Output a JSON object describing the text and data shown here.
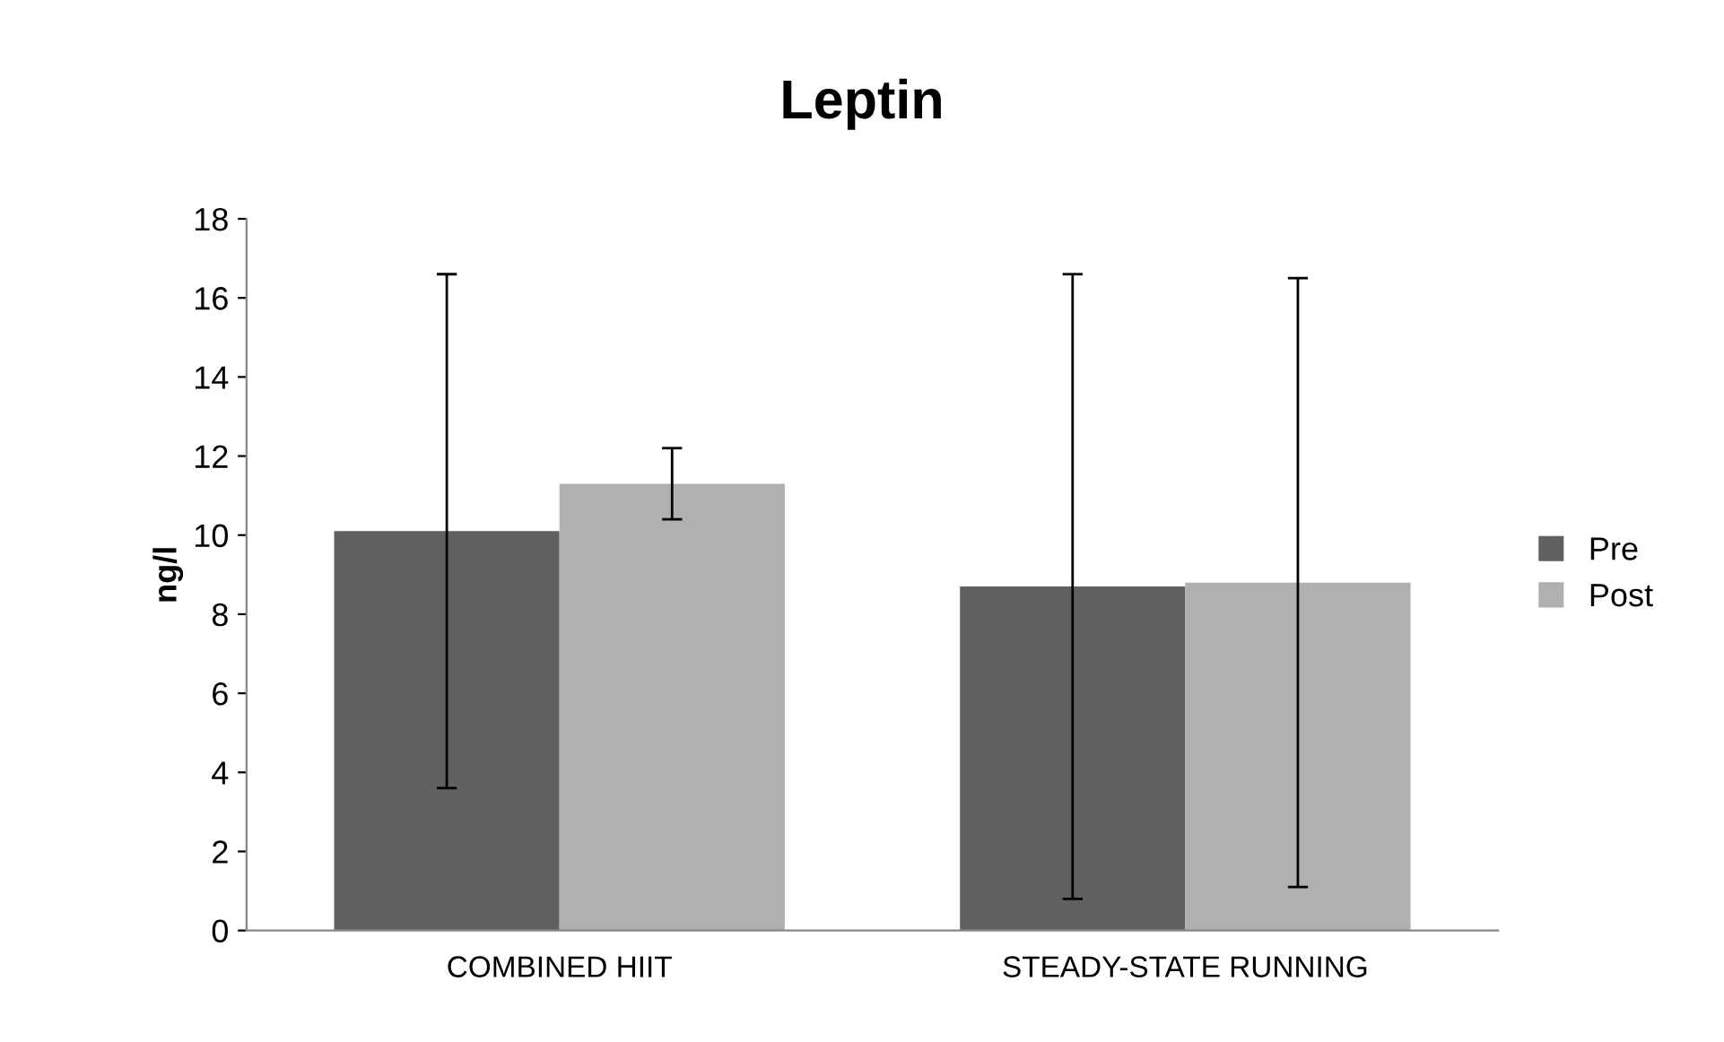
{
  "chart_data": {
    "type": "bar",
    "title": "Leptin",
    "ylabel": "ng/l",
    "categories": [
      "COMBINED HIIT",
      "STEADY-STATE RUNNING"
    ],
    "series": [
      {
        "name": "Pre",
        "color": "#606060",
        "values": [
          10.1,
          8.7
        ],
        "errors": [
          6.5,
          7.9
        ]
      },
      {
        "name": "Post",
        "color": "#b0b0b0",
        "values": [
          11.3,
          8.8
        ],
        "errors": [
          0.9,
          7.7
        ]
      }
    ],
    "ylim": [
      0,
      18
    ],
    "yticks": [
      0,
      2,
      4,
      6,
      8,
      10,
      12,
      14,
      16,
      18
    ],
    "grid": false,
    "legend": "right"
  }
}
